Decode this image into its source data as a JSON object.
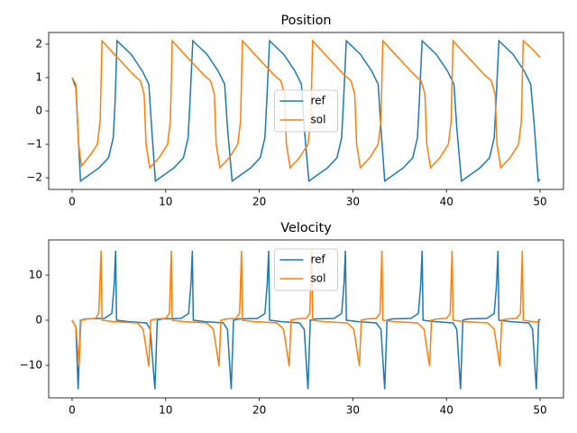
{
  "chart_data": [
    {
      "type": "line",
      "title": "Position",
      "xlim": [
        -2.5,
        52.5
      ],
      "ylim": [
        -2.35,
        2.35
      ],
      "xticks": [
        0,
        10,
        20,
        30,
        40,
        50
      ],
      "yticks": [
        {
          "value": -2,
          "label": "−2"
        },
        {
          "value": -1,
          "label": "−1"
        },
        0,
        1,
        2
      ],
      "legend": "center",
      "series": [
        {
          "name": "ref",
          "color": "#1f77b4",
          "x": [
            0,
            0.4,
            0.7,
            0.9,
            2.9,
            3.9,
            4.4,
            4.6,
            4.8,
            6.3,
            7.5,
            8.2,
            8.5,
            8.9,
            10.9,
            11.9,
            12.4,
            12.6,
            12.9,
            14.4,
            15.6,
            16.3,
            16.6,
            17.1,
            19.1,
            20.1,
            20.6,
            20.8,
            21.1,
            22.6,
            23.8,
            24.5,
            24.8,
            25.3,
            27.3,
            28.3,
            28.8,
            29.0,
            29.3,
            30.8,
            32.0,
            32.7,
            33.0,
            33.4,
            35.4,
            36.4,
            36.9,
            37.1,
            37.4,
            38.9,
            40.1,
            40.8,
            41.1,
            41.6,
            43.6,
            44.6,
            45.1,
            45.3,
            45.6,
            47.1,
            48.3,
            49.0,
            49.4,
            49.8,
            50
          ],
          "values": [
            1,
            0.7,
            -1,
            -2.1,
            -1.7,
            -1.4,
            -0.8,
            0.3,
            2.1,
            1.7,
            1.2,
            0.8,
            -0.5,
            -2.1,
            -1.7,
            -1.4,
            -0.8,
            0.3,
            2.1,
            1.7,
            1.2,
            0.8,
            -0.5,
            -2.1,
            -1.7,
            -1.4,
            -0.8,
            0.3,
            2.1,
            1.7,
            1.2,
            0.8,
            -0.5,
            -2.1,
            -1.7,
            -1.4,
            -0.8,
            0.3,
            2.1,
            1.7,
            1.2,
            0.8,
            -0.5,
            -2.1,
            -1.7,
            -1.4,
            -0.8,
            0.3,
            2.1,
            1.7,
            1.2,
            0.8,
            -0.5,
            -2.1,
            -1.7,
            -1.4,
            -0.8,
            0.3,
            2.1,
            1.7,
            1.2,
            0.8,
            -0.5,
            -2.1,
            -2.05
          ]
        },
        {
          "name": "sol",
          "color": "#ff7f0e",
          "x": [
            0,
            0.4,
            0.7,
            1.0,
            2.0,
            2.7,
            3.0,
            3.2,
            4.5,
            5.5,
            6.5,
            7.3,
            7.7,
            7.9,
            8.3,
            9.3,
            10.2,
            10.5,
            10.7,
            12.0,
            13.0,
            14.0,
            14.8,
            15.2,
            15.4,
            15.8,
            16.8,
            17.7,
            18.0,
            18.2,
            19.5,
            20.5,
            21.5,
            22.3,
            22.7,
            22.9,
            23.3,
            24.3,
            25.2,
            25.5,
            25.7,
            27.0,
            28.0,
            29.0,
            29.8,
            30.2,
            30.4,
            30.8,
            31.8,
            32.7,
            33.0,
            33.2,
            34.5,
            35.5,
            36.5,
            37.3,
            37.7,
            37.9,
            38.3,
            39.3,
            40.2,
            40.5,
            40.7,
            42.0,
            43.0,
            44.0,
            44.8,
            45.2,
            45.4,
            45.8,
            46.8,
            47.7,
            48.0,
            48.2,
            49.0,
            50.0
          ],
          "values": [
            1,
            0.8,
            -1,
            -1.65,
            -1.3,
            -1.0,
            -0.3,
            2.1,
            1.7,
            1.4,
            1.1,
            0.9,
            0.5,
            -1.0,
            -1.7,
            -1.4,
            -1.0,
            -0.3,
            2.1,
            1.7,
            1.4,
            1.1,
            0.9,
            0.5,
            -1.0,
            -1.7,
            -1.4,
            -1.0,
            -0.3,
            2.1,
            1.7,
            1.4,
            1.1,
            0.9,
            0.5,
            -1.0,
            -1.7,
            -1.4,
            -1.0,
            -0.3,
            2.1,
            1.7,
            1.4,
            1.1,
            0.9,
            0.5,
            -1.0,
            -1.7,
            -1.4,
            -1.0,
            -0.3,
            2.1,
            1.7,
            1.4,
            1.1,
            0.9,
            0.5,
            -1.0,
            -1.7,
            -1.4,
            -1.0,
            -0.3,
            2.1,
            1.7,
            1.4,
            1.1,
            0.9,
            0.5,
            -1.0,
            -1.7,
            -1.4,
            -1.0,
            -0.3,
            2.1,
            1.9,
            1.6
          ]
        }
      ]
    },
    {
      "type": "line",
      "title": "Velocity",
      "xlim": [
        -2.5,
        52.5
      ],
      "ylim": [
        -17.2,
        17.8
      ],
      "xticks": [
        0,
        10,
        20,
        30,
        40,
        50
      ],
      "yticks": [
        {
          "value": -10,
          "label": "−10"
        },
        0,
        10
      ],
      "legend": "upper center",
      "series": [
        {
          "name": "ref",
          "color": "#1f77b4",
          "x": [
            0,
            0.4,
            0.65,
            0.9,
            1.45,
            3.45,
            4.25,
            4.5,
            4.65,
            4.75,
            5.95,
            7.95,
            8.35,
            8.85,
            9.1,
            9.65,
            11.65,
            12.45,
            12.7,
            12.85,
            12.95,
            14.15,
            16.15,
            16.6,
            17.0,
            17.25,
            17.8,
            19.8,
            20.6,
            20.85,
            21.0,
            21.1,
            22.3,
            24.3,
            24.8,
            25.2,
            25.45,
            26.0,
            28.0,
            28.8,
            29.05,
            29.2,
            29.3,
            30.5,
            32.5,
            33.0,
            33.4,
            33.65,
            34.2,
            36.2,
            37.0,
            37.25,
            37.4,
            37.5,
            38.7,
            40.7,
            41.1,
            41.5,
            41.75,
            42.3,
            44.3,
            45.1,
            45.35,
            45.5,
            45.6,
            46.8,
            48.8,
            49.2,
            49.6,
            49.85,
            50
          ],
          "values": [
            0,
            -1.5,
            -15.3,
            0,
            0.3,
            0.4,
            1.5,
            8,
            15.4,
            0,
            -0.3,
            -0.6,
            -2,
            -15.3,
            0,
            0.3,
            0.4,
            1.5,
            8,
            15.4,
            0,
            -0.3,
            -0.6,
            -2,
            -15.3,
            0,
            0.3,
            0.4,
            1.5,
            8,
            15.4,
            0,
            -0.3,
            -0.6,
            -2,
            -15.3,
            0,
            0.3,
            0.4,
            1.5,
            8,
            15.4,
            0,
            -0.3,
            -0.6,
            -2,
            -15.3,
            0,
            0.3,
            0.4,
            1.5,
            8,
            15.4,
            0,
            -0.3,
            -0.6,
            -2,
            -15.3,
            0,
            0.3,
            0.4,
            1.5,
            8,
            15.4,
            0,
            -0.3,
            -0.6,
            -2,
            -15.3,
            0,
            0.2
          ]
        },
        {
          "name": "sol",
          "color": "#ff7f0e",
          "x": [
            0,
            0.4,
            0.75,
            0.95,
            1.6,
            2.5,
            2.85,
            3.1,
            3.2,
            4.4,
            7.0,
            7.6,
            8.2,
            8.4,
            9.0,
            10.0,
            10.4,
            10.6,
            10.7,
            11.9,
            14.4,
            15.1,
            15.7,
            15.9,
            16.5,
            17.5,
            17.9,
            18.1,
            18.2,
            19.4,
            21.9,
            22.6,
            23.2,
            23.4,
            24.0,
            25.0,
            25.4,
            25.6,
            25.7,
            26.9,
            29.4,
            30.1,
            30.7,
            30.9,
            31.5,
            32.5,
            32.9,
            33.1,
            33.2,
            34.4,
            36.9,
            37.6,
            38.2,
            38.4,
            39.0,
            40.0,
            40.4,
            40.6,
            40.7,
            41.9,
            44.4,
            45.1,
            45.7,
            45.9,
            46.5,
            47.5,
            47.9,
            48.1,
            48.2,
            49.2,
            50
          ],
          "values": [
            0,
            -1.5,
            -10,
            0,
            0.3,
            0.4,
            1.5,
            15.4,
            0,
            -0.3,
            -0.6,
            -2,
            -10.2,
            0,
            0.3,
            0.4,
            1.5,
            15.4,
            0,
            -0.3,
            -0.6,
            -2,
            -10.2,
            0,
            0.3,
            0.4,
            1.5,
            15.4,
            0,
            -0.3,
            -0.6,
            -2,
            -10.2,
            0,
            0.3,
            0.4,
            1.5,
            15.4,
            0,
            -0.3,
            -0.6,
            -2,
            -10.2,
            0,
            0.3,
            0.4,
            1.5,
            15.4,
            0,
            -0.3,
            -0.6,
            -2,
            -10.2,
            0,
            0.3,
            0.4,
            1.5,
            15.4,
            0,
            -0.3,
            -0.6,
            -2,
            -10.2,
            0,
            0.3,
            0.4,
            1.5,
            15.4,
            0,
            -0.3,
            -0.4
          ]
        }
      ]
    }
  ]
}
